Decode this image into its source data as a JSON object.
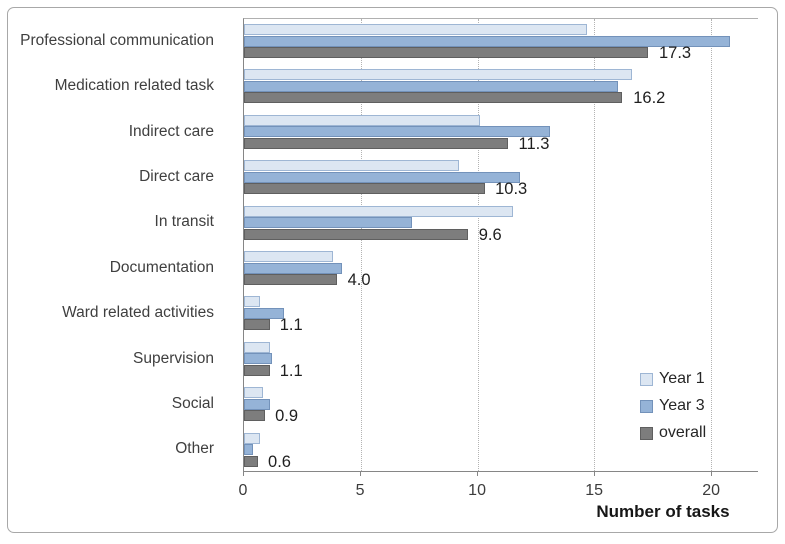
{
  "chart_data": {
    "type": "bar",
    "orientation": "horizontal",
    "title": "",
    "xlabel": "Number of tasks",
    "ylabel": "",
    "categories": [
      "Professional communication",
      "Medication related task",
      "Indirect care",
      "Direct care",
      "In transit",
      "Documentation",
      "Ward related activities",
      "Supervision",
      "Social",
      "Other"
    ],
    "series": [
      {
        "name": "Year 1",
        "color": "#dce6f2",
        "border_color": "#9eb6d4",
        "values": [
          14.7,
          16.6,
          10.1,
          9.2,
          11.5,
          3.8,
          0.7,
          1.1,
          0.8,
          0.7
        ]
      },
      {
        "name": "Year 3",
        "color": "#95b3d7",
        "border_color": "#7392ba",
        "values": [
          20.8,
          16.0,
          13.1,
          11.8,
          7.2,
          4.2,
          1.7,
          1.2,
          1.1,
          0.4
        ]
      },
      {
        "name": "overall",
        "color": "#7d7d7d",
        "border_color": "#5f5f5f",
        "values": [
          17.3,
          16.2,
          11.3,
          10.3,
          9.6,
          4.0,
          1.1,
          1.1,
          0.9,
          0.6
        ]
      }
    ],
    "data_labels": [
      "17.3",
      "16.2",
      "11.3",
      "10.3",
      "9.6",
      "4.0",
      "1.1",
      "1.1",
      "0.9",
      "0.6"
    ],
    "data_labels_series": "overall",
    "x_ticks": [
      0,
      5,
      10,
      15,
      20
    ],
    "xlim": [
      0,
      22
    ],
    "grid": "vertical-dotted",
    "legend_position": "inside-bottom-right",
    "legend": [
      "Year 1",
      "Year 3",
      "overall"
    ]
  }
}
